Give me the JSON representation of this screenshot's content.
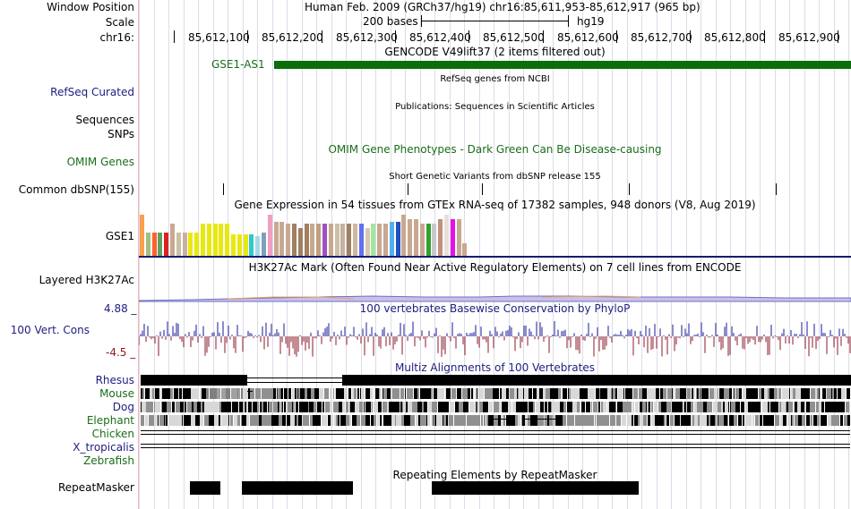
{
  "header": {
    "window_position_label": "Window Position",
    "window_position_value": "Human Feb. 2009 (GRCh37/hg19)   chr16:85,611,953-85,612,917 (965 bp)",
    "scale_label": "Scale",
    "scale_value": "200 bases",
    "scale_assembly": "hg19",
    "chrom_label": "chr16:",
    "positions": [
      "85,612,100",
      "85,612,200",
      "85,612,300",
      "85,612,400",
      "85,612,500",
      "85,612,600",
      "85,612,700",
      "85,612,800",
      "85,612,900"
    ]
  },
  "tracks": {
    "gencode": {
      "title": "GENCODE V49lift37 (2 items filtered out)",
      "gene_label": "GSE1-AS1",
      "color": "#0a6e0a"
    },
    "refseq": {
      "label": "RefSeq Curated",
      "title": "RefSeq genes from NCBI"
    },
    "publications": {
      "label_sequences": "Sequences",
      "label_snps": "SNPs",
      "title": "Publications: Sequences in Scientific Articles"
    },
    "omim": {
      "label": "OMIM Genes",
      "title": "OMIM Gene Phenotypes - Dark Green Can Be Disease-causing"
    },
    "dbsnp": {
      "label": "Common dbSNP(155)",
      "title": "Short Genetic Variants from dbSNP release 155"
    },
    "gtex": {
      "label": "GSE1",
      "title": "Gene Expression in 54 tissues from GTEx RNA-seq of 17382 samples, 948 donors (V8, Aug 2019)",
      "bar_levels": [
        0.95,
        0.55,
        0.55,
        0.55,
        0.55,
        0.75,
        0.55,
        0.55,
        0.55,
        0.55,
        0.75,
        0.75,
        0.75,
        0.75,
        0.75,
        0.5,
        0.5,
        0.5,
        0.5,
        0.45,
        0.55,
        0.95,
        0.8,
        0.8,
        0.75,
        0.75,
        0.65,
        0.75,
        0.75,
        0.75,
        0.75,
        0.75,
        0.75,
        0.75,
        0.75,
        0.75,
        0.75,
        0.65,
        0.75,
        0.75,
        0.75,
        0.8,
        0.8,
        0.95,
        0.85,
        0.85,
        0.75,
        0.75,
        0.75,
        0.85,
        0.95,
        0.85,
        0.85,
        0.3
      ],
      "bar_colors": [
        "#f8a050",
        "#a0c080",
        "#ff6030",
        "#60a060",
        "#e02020",
        "#c8a890",
        "#c8c0a8",
        "#c8b0a0",
        "#e8e810",
        "#e8e810",
        "#e8e810",
        "#e8e810",
        "#e8e810",
        "#e8e810",
        "#e8e810",
        "#e8e810",
        "#e8e810",
        "#e8e810",
        "#30c8c8",
        "#a8d8e8",
        "#80a0b8",
        "#f0a0c0",
        "#c8a890",
        "#c8a890",
        "#c8a890",
        "#a08060",
        "#a08060",
        "#a08060",
        "#c8a890",
        "#c0a080",
        "#a050c0",
        "#c8a890",
        "#c8c0a8",
        "#c8b0a0",
        "#a08060",
        "#d0b8a0",
        "#6070f0",
        "#d8c8b0",
        "#a0e8a0",
        "#c8a890",
        "#c8a890",
        "#50b0f0",
        "#2050c0",
        "#c8a890",
        "#c8a890",
        "#c8a890",
        "#c8a890",
        "#30a030",
        "#c8c8c8",
        "#c09080",
        "#e8e0d8",
        "#e810e8",
        "#c8a890",
        "#c8a890"
      ]
    },
    "h3k27ac": {
      "label": "Layered H3K27Ac",
      "title": "H3K27Ac Mark (Often Found Near Active Regulatory Elements) on 7 cell lines from ENCODE"
    },
    "phylop": {
      "label": "100 Vert. Cons",
      "title": "100 vertebrates Basewise Conservation by PhyloP",
      "max_label": "4.88 _",
      "min_label": "-4.5 _"
    },
    "multiz": {
      "title": "Multiz Alignments of 100 Vertebrates",
      "species": [
        "Rhesus",
        "Mouse",
        "Dog",
        "Elephant",
        "Chicken",
        "X_tropicalis",
        "Zebrafish"
      ]
    },
    "repeatmasker": {
      "label": "RepeatMasker",
      "title": "Repeating Elements by RepeatMasker"
    }
  }
}
